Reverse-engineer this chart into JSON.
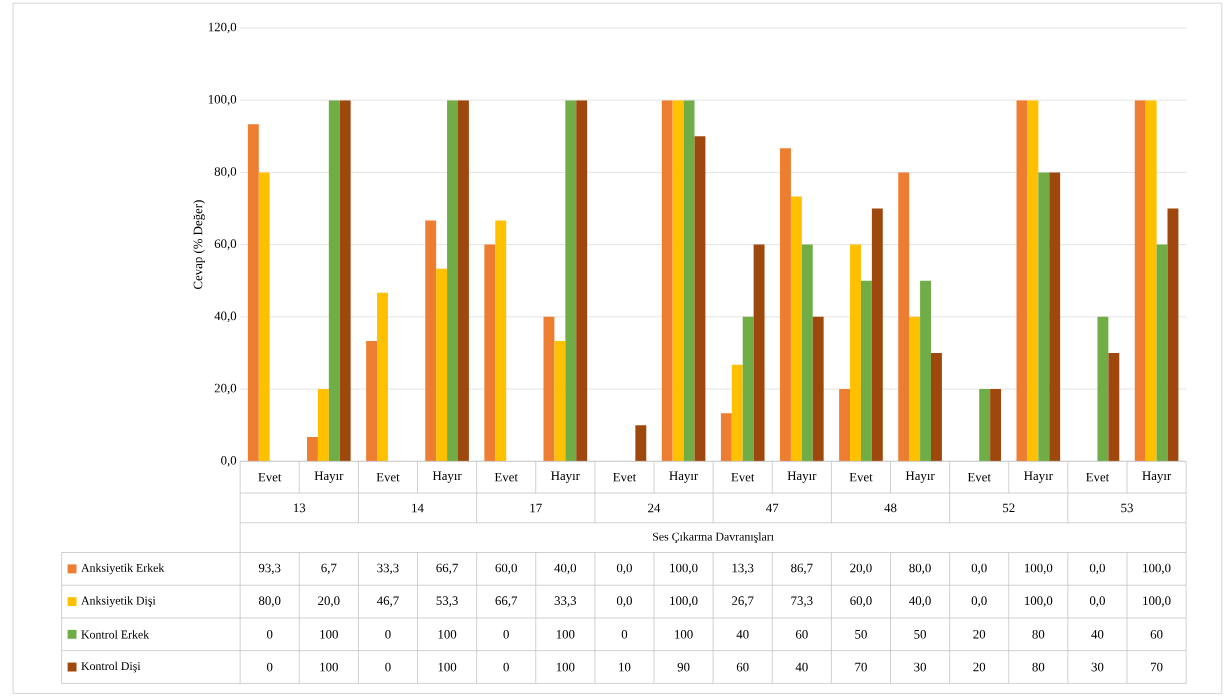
{
  "chart_data": {
    "type": "bar",
    "ylabel": "Cevap (% Değer)",
    "xlabel": "Ses Çıkarma Davranışları",
    "categories": [
      "Evet",
      "Hayır",
      "Evet",
      "Hayır",
      "Evet",
      "Hayır",
      "Evet",
      "Hayır",
      "Evet",
      "Hayır",
      "Evet",
      "Hayır",
      "Evet",
      "Hayır",
      "Evet",
      "Hayır"
    ],
    "annotations": [
      "13",
      "14",
      "17",
      "24",
      "47",
      "48",
      "52",
      "53"
    ],
    "series": [
      {
        "name": "Anksiyetik Erkek",
        "color": "#ed7d31",
        "values": [
          93.3,
          6.7,
          33.3,
          66.7,
          60.0,
          40.0,
          0.0,
          100.0,
          13.3,
          86.7,
          20.0,
          80.0,
          0.0,
          100.0,
          0.0,
          100.0
        ],
        "value_labels": [
          "93,3",
          "6,7",
          "33,3",
          "66,7",
          "60,0",
          "40,0",
          "0,0",
          "100,0",
          "13,3",
          "86,7",
          "20,0",
          "80,0",
          "0,0",
          "100,0",
          "0,0",
          "100,0"
        ]
      },
      {
        "name": "Anksiyetik Dişi",
        "color": "#ffc000",
        "values": [
          80.0,
          20.0,
          46.7,
          53.3,
          66.7,
          33.3,
          0.0,
          100.0,
          26.7,
          73.3,
          60.0,
          40.0,
          0.0,
          100.0,
          0.0,
          100.0
        ],
        "value_labels": [
          "80,0",
          "20,0",
          "46,7",
          "53,3",
          "66,7",
          "33,3",
          "0,0",
          "100,0",
          "26,7",
          "73,3",
          "60,0",
          "40,0",
          "0,0",
          "100,0",
          "0,0",
          "100,0"
        ]
      },
      {
        "name": "Kontrol Erkek",
        "color": "#70ad47",
        "values": [
          0,
          100,
          0,
          100,
          0,
          100,
          0,
          100,
          40,
          60,
          50,
          50,
          20,
          80,
          40,
          60
        ],
        "value_labels": [
          "0",
          "100",
          "0",
          "100",
          "0",
          "100",
          "0",
          "100",
          "40",
          "60",
          "50",
          "50",
          "20",
          "80",
          "40",
          "60"
        ]
      },
      {
        "name": "Kontrol Dişi",
        "color": "#9e480e",
        "values": [
          0,
          100,
          0,
          100,
          0,
          100,
          10,
          90,
          60,
          40,
          70,
          30,
          20,
          80,
          30,
          70
        ],
        "value_labels": [
          "0",
          "100",
          "0",
          "100",
          "0",
          "100",
          "10",
          "90",
          "60",
          "40",
          "70",
          "30",
          "20",
          "80",
          "30",
          "70"
        ]
      }
    ],
    "ylim": [
      0,
      120
    ],
    "yticks": [
      {
        "value": 0,
        "label": "0,0"
      },
      {
        "value": 20,
        "label": "20,0"
      },
      {
        "value": 40,
        "label": "40,0"
      },
      {
        "value": 60,
        "label": "60,0"
      },
      {
        "value": 80,
        "label": "80,0"
      },
      {
        "value": 100,
        "label": "100,0"
      },
      {
        "value": 120,
        "label": "120,0"
      }
    ],
    "grid": "y",
    "legend": "bottom"
  }
}
